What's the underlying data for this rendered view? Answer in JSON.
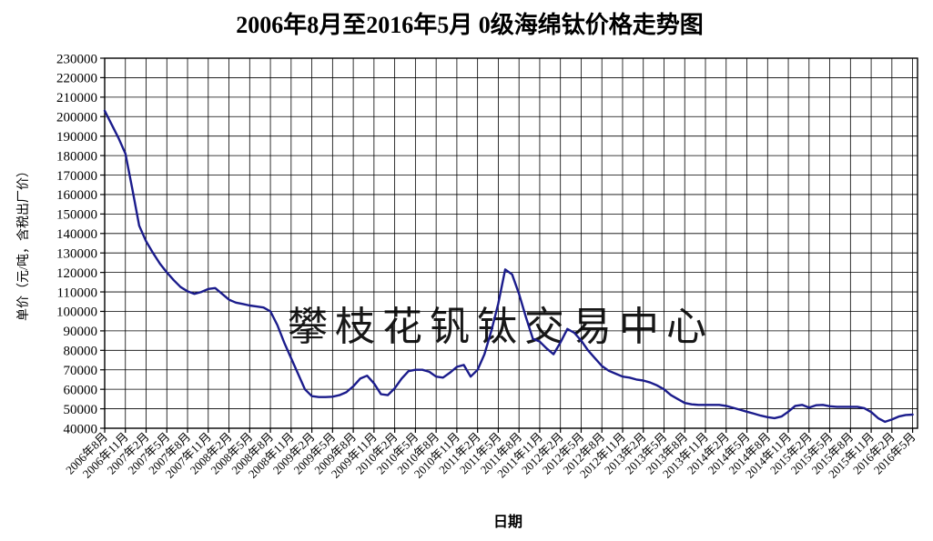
{
  "title": "2006年8月至2016年5月 0级海绵钛价格走势图",
  "watermark": "攀枝花钒钛交易中心",
  "chart_data": {
    "type": "line",
    "title": "2006年8月至2016年5月 0级海绵钛价格走势图",
    "xlabel": "日期",
    "ylabel": "单价（元/吨，含税出厂价）",
    "ylim": [
      40000,
      230000
    ],
    "ytick_step": 10000,
    "y_tick_labels": [
      "40000",
      "50000",
      "60000",
      "70000",
      "80000",
      "90000",
      "100000",
      "110000",
      "120000",
      "130000",
      "140000",
      "150000",
      "160000",
      "170000",
      "180000",
      "190000",
      "200000",
      "210000",
      "220000",
      "230000"
    ],
    "grid": true,
    "legend": "none",
    "x_tick_every_months": 3,
    "x_tick_labels": [
      "2006年8月",
      "2006年11月",
      "2007年2月",
      "2007年5月",
      "2007年8月",
      "2007年11月",
      "2008年2月",
      "2008年5月",
      "2008年8月",
      "2008年11月",
      "2009年2月",
      "2009年5月",
      "2009年8月",
      "2009年11月",
      "2010年2月",
      "2010年5月",
      "2010年8月",
      "2010年11月",
      "2011年2月",
      "2011年5月",
      "2011年8月",
      "2011年11月",
      "2012年2月",
      "2012年5月",
      "2012年8月",
      "2012年11月",
      "2013年2月",
      "2013年5月",
      "2013年8月",
      "2013年11月",
      "2014年2月",
      "2014年5月",
      "2014年8月",
      "2014年11月",
      "2015年2月",
      "2015年5月",
      "2015年8月",
      "2015年11月",
      "2016年2月",
      "2016年5月"
    ],
    "series": [
      {
        "name": "0级海绵钛价格",
        "start_month": "2006-08",
        "end_month": "2016-05",
        "values": [
          203000,
          196000,
          189000,
          181000,
          163000,
          144000,
          136000,
          130000,
          124500,
          120000,
          116000,
          112500,
          110300,
          109000,
          110000,
          111500,
          112000,
          109000,
          106000,
          104500,
          103800,
          103000,
          102500,
          102000,
          100000,
          93000,
          84000,
          76000,
          68000,
          60000,
          56500,
          56000,
          56000,
          56200,
          57000,
          58500,
          61500,
          65500,
          67000,
          63000,
          57500,
          57000,
          60500,
          65500,
          69300,
          70000,
          70000,
          69000,
          66500,
          66000,
          68500,
          71500,
          72500,
          66500,
          70000,
          78000,
          90000,
          104000,
          121500,
          119000,
          109000,
          97000,
          86000,
          84500,
          81000,
          78000,
          84000,
          91000,
          89000,
          85000,
          80000,
          76000,
          72000,
          69500,
          68000,
          66500,
          66000,
          65000,
          64500,
          63500,
          62000,
          60000,
          57000,
          55000,
          53000,
          52300,
          52000,
          52000,
          52000,
          52000,
          51500,
          50500,
          49500,
          48500,
          47500,
          46500,
          45700,
          45200,
          46000,
          48500,
          51500,
          52000,
          50600,
          51800,
          52000,
          51300,
          51000,
          51000,
          51000,
          51000,
          50300,
          48300,
          45200,
          43300,
          44500,
          46000,
          46800,
          47000
        ]
      }
    ],
    "colors": {
      "line": "#1b1c8c",
      "grid": "#000000",
      "border": "#000000",
      "watermark": "#c8c8e8",
      "background": "#ffffff"
    }
  }
}
